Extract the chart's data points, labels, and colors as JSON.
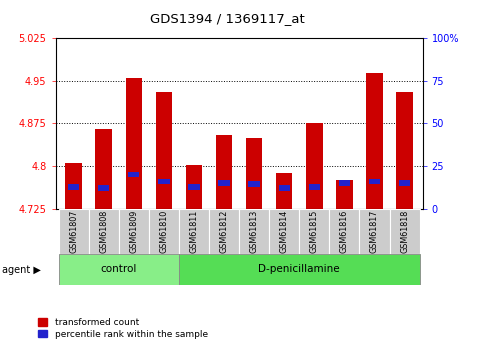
{
  "title": "GDS1394 / 1369117_at",
  "samples": [
    "GSM61807",
    "GSM61808",
    "GSM61809",
    "GSM61810",
    "GSM61811",
    "GSM61812",
    "GSM61813",
    "GSM61814",
    "GSM61815",
    "GSM61816",
    "GSM61817",
    "GSM61818"
  ],
  "red_values": [
    4.805,
    4.865,
    4.955,
    4.93,
    4.802,
    4.855,
    4.85,
    4.787,
    4.875,
    4.775,
    4.963,
    4.93
  ],
  "blue_values": [
    4.763,
    4.762,
    4.785,
    4.773,
    4.763,
    4.77,
    4.768,
    4.762,
    4.763,
    4.77,
    4.773,
    4.77
  ],
  "baseline": 4.725,
  "ylim_left": [
    4.725,
    5.025
  ],
  "ylim_right": [
    0,
    100
  ],
  "yticks_left": [
    4.725,
    4.8,
    4.875,
    4.95,
    5.025
  ],
  "yticks_right": [
    0,
    25,
    50,
    75,
    100
  ],
  "ytick_labels_left": [
    "4.725",
    "4.8",
    "4.875",
    "4.95",
    "5.025"
  ],
  "ytick_labels_right": [
    "0",
    "25",
    "50",
    "75",
    "100%"
  ],
  "groups": [
    {
      "label": "control",
      "indices": [
        0,
        1,
        2,
        3
      ],
      "color": "#88ee88"
    },
    {
      "label": "D-penicillamine",
      "indices": [
        4,
        5,
        6,
        7,
        8,
        9,
        10,
        11
      ],
      "color": "#55dd55"
    }
  ],
  "bar_color_red": "#cc0000",
  "bar_color_blue": "#2222cc",
  "bg_plot": "#ffffff",
  "tick_bg": "#cccccc",
  "bar_width": 0.55,
  "blue_bar_width": 0.38,
  "blue_bar_height": 0.01
}
